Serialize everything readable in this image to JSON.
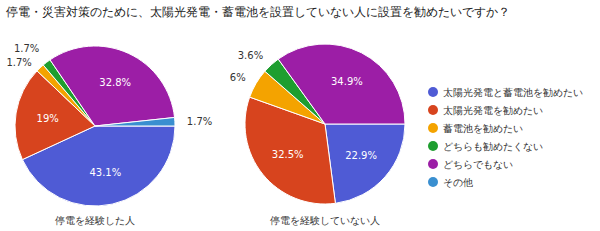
{
  "chart_data": {
    "type": "pie",
    "title": "停電・災害対策のために、太陽光発電・蓄電池を設置していない人に設置を勧めたいですか？",
    "categories": [
      "太陽光発電と蓄電池を勧めたい",
      "太陽光発電を勧めたい",
      "蓄電池を勧めたい",
      "どちらも勧めたくない",
      "どちらでもない",
      "その他"
    ],
    "colors": [
      "#4f5bd5",
      "#d7441e",
      "#f4a300",
      "#1e9e2f",
      "#9c1ea6",
      "#3a8fd0"
    ],
    "series": [
      {
        "name": "停電を経験した人",
        "values": [
          43.1,
          19,
          1.7,
          1.7,
          32.8,
          1.7
        ],
        "value_labels": [
          "43.1%",
          "19%",
          "1.7%",
          "1.7%",
          "32.8%",
          "1.7%"
        ]
      },
      {
        "name": "停電を経験していない人",
        "values": [
          22.9,
          32.5,
          6,
          3.6,
          34.9,
          0
        ],
        "value_labels": [
          "22.9%",
          "32.5%",
          "6%",
          "3.6%",
          "34.9%",
          null
        ]
      }
    ],
    "data_labels": true,
    "legend": "right"
  }
}
